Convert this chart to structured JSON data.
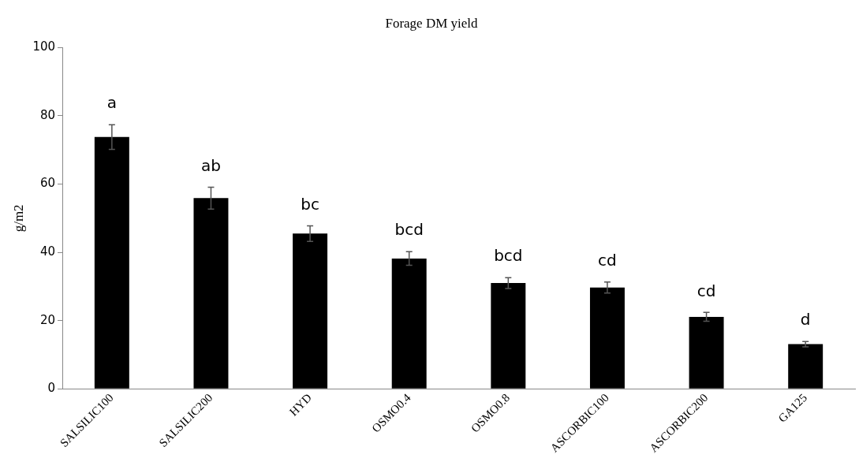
{
  "chart_data": {
    "type": "bar",
    "title": "Forage DM yield",
    "ylabel": "g/m2",
    "categories": [
      "SALSILIC100",
      "SALSILIC200",
      "HYD",
      "OSMO0.4",
      "OSMO0.8",
      "ASCORBIC100",
      "ASCORBIC200",
      "GA125"
    ],
    "values": [
      73.8,
      55.9,
      45.5,
      38.2,
      31,
      29.7,
      21.1,
      13.1
    ],
    "errors": [
      3.6,
      3.2,
      2.3,
      2,
      1.6,
      1.6,
      1.3,
      0.8
    ],
    "color": "#000000",
    "ylim": [
      0,
      100
    ],
    "yticks": [
      0,
      20,
      40,
      60,
      80,
      100
    ],
    "grid": false,
    "legend": false,
    "annotations": [
      "a",
      "ab",
      "bc",
      "bcd",
      "bcd",
      "cd",
      "cd",
      "d"
    ]
  }
}
